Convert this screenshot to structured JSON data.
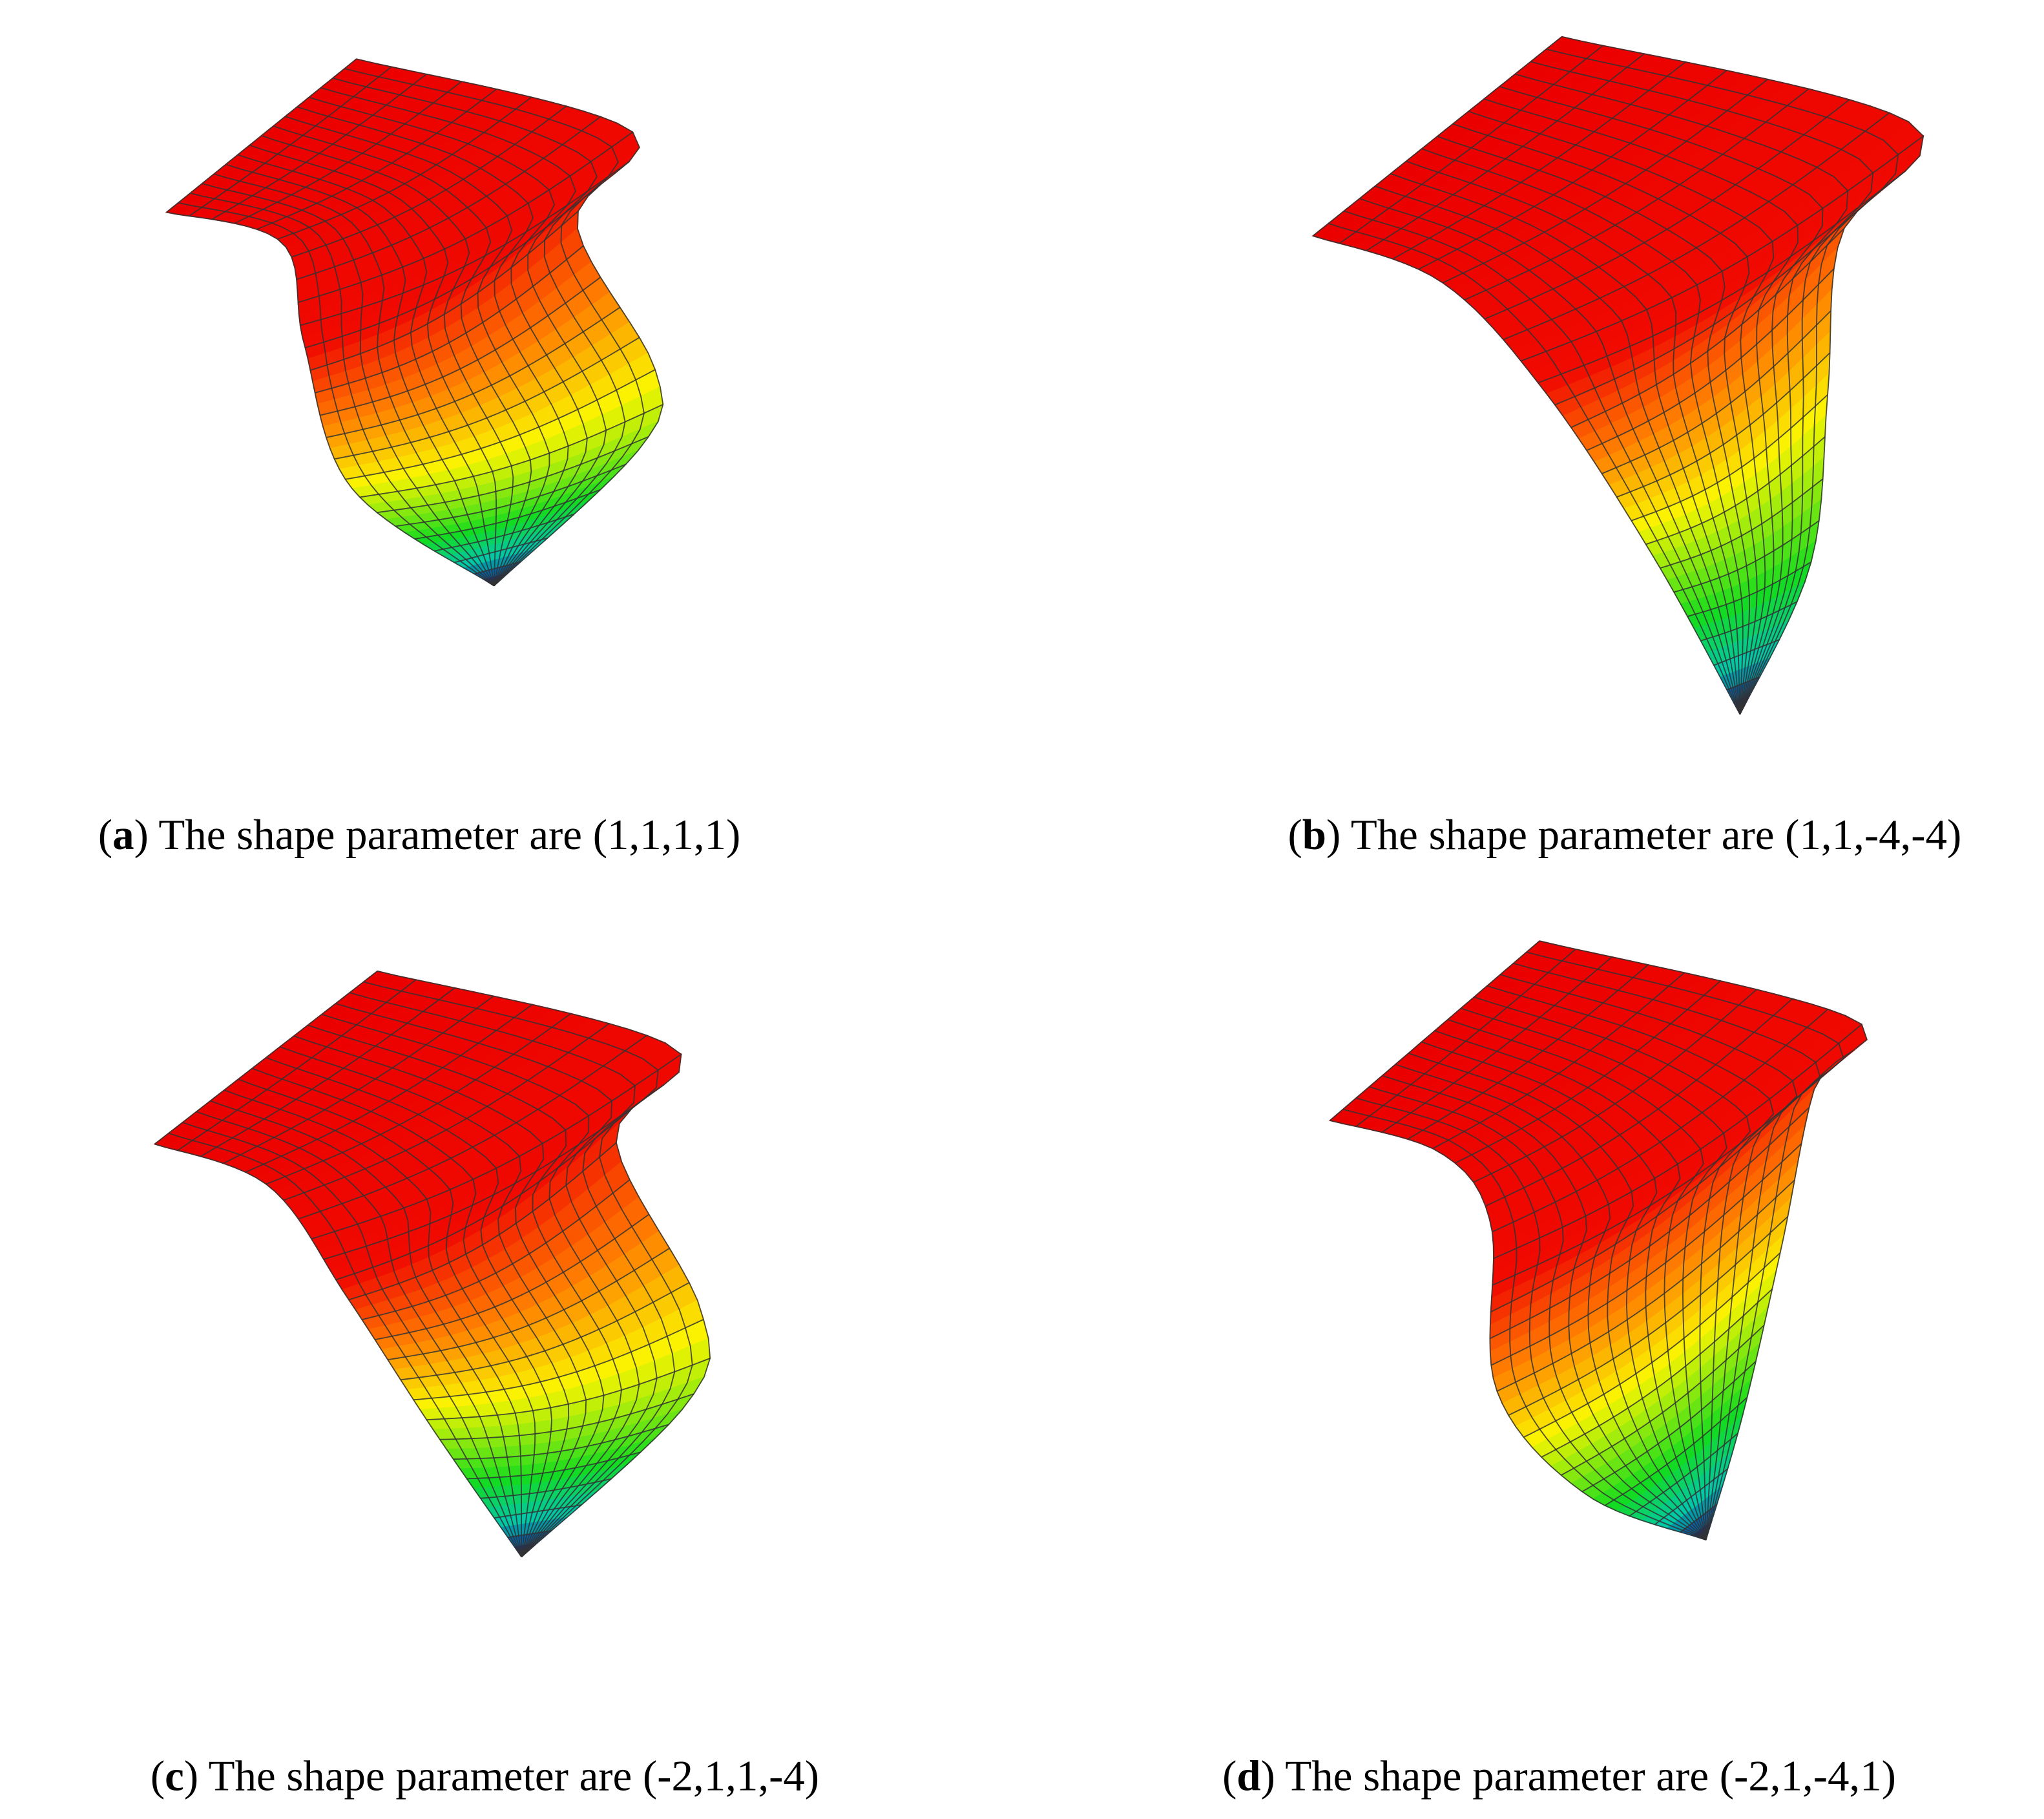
{
  "panels": [
    {
      "prefix": "(",
      "label": "a",
      "text": ") The shape parameter are (1,1,1,1)"
    },
    {
      "prefix": "(",
      "label": "b",
      "text": ") The shape parameter are (1,1,-4,-4)"
    },
    {
      "prefix": "(",
      "label": "c",
      "text": ") The shape parameter are (-2,1,1,-4)"
    },
    {
      "prefix": "(",
      "label": "d",
      "text": ") The shape parameter are (-2,1,-4,1)"
    }
  ]
}
